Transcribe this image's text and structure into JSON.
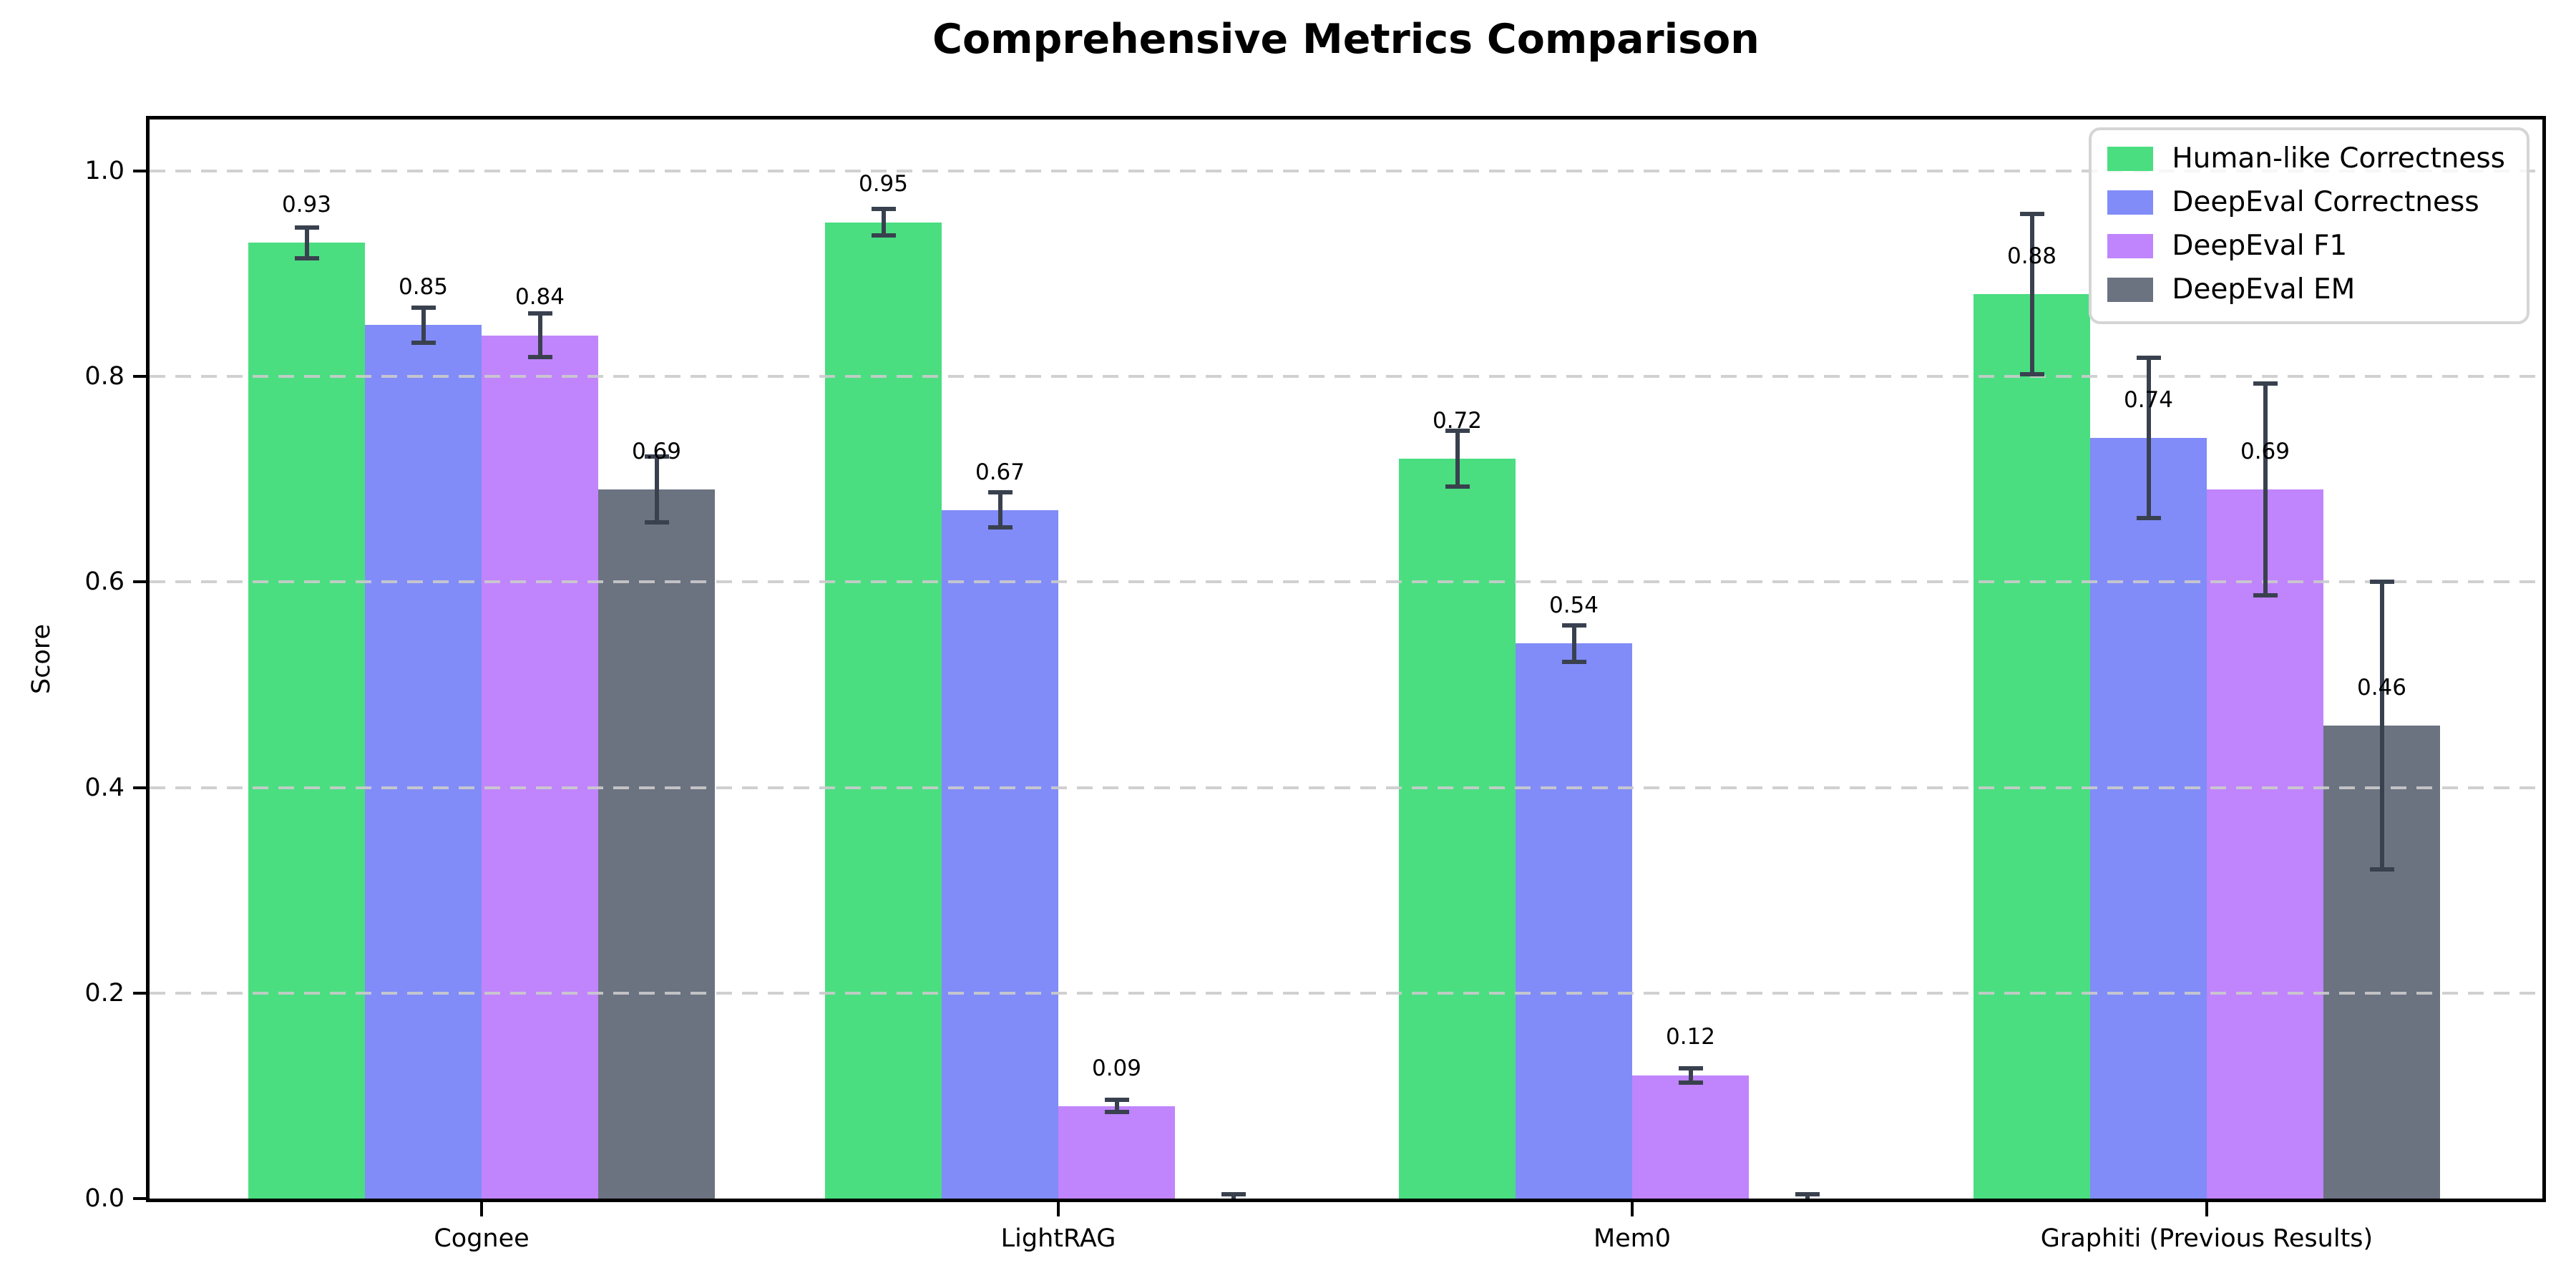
{
  "chart_data": {
    "type": "bar",
    "title": "Comprehensive Metrics Comparison",
    "xlabel": "",
    "ylabel": "Score",
    "ylim": [
      0,
      1.05
    ],
    "grid": "horizontal dashed",
    "legend_position": "upper right",
    "background": "#ffffff",
    "error_bar_color": "#39414f",
    "gridline_color": "#cbcbcb",
    "spine_color": "#000000",
    "categories": [
      "Cognee",
      "LightRAG",
      "Mem0",
      "Graphiti (Previous Results)"
    ],
    "yticks": {
      "values": [
        0.0,
        0.2,
        0.4,
        0.6,
        0.8,
        1.0
      ],
      "labels": [
        "0.0",
        "0.2",
        "0.4",
        "0.6",
        "0.8",
        "1.0"
      ]
    },
    "series": [
      {
        "name": "Human-like Correctness",
        "color": "#4ade80",
        "values": [
          0.93,
          0.95,
          0.72,
          0.88
        ],
        "errors": [
          0.015,
          0.013,
          0.027,
          0.078
        ],
        "labels": [
          "0.93",
          "0.95",
          "0.72",
          "0.88"
        ]
      },
      {
        "name": "DeepEval Correctness",
        "color": "#818cf8",
        "values": [
          0.85,
          0.67,
          0.54,
          0.74
        ],
        "errors": [
          0.017,
          0.017,
          0.018,
          0.078
        ],
        "labels": [
          "0.85",
          "0.67",
          "0.54",
          "0.74"
        ]
      },
      {
        "name": "DeepEval F1",
        "color": "#c084fc",
        "values": [
          0.84,
          0.09,
          0.12,
          0.69
        ],
        "errors": [
          0.021,
          0.006,
          0.007,
          0.103
        ],
        "labels": [
          "0.84",
          "0.09",
          "0.12",
          "0.69"
        ]
      },
      {
        "name": "DeepEval EM",
        "color": "#6b7280",
        "values": [
          0.69,
          0.0,
          0.0,
          0.46
        ],
        "errors": [
          0.032,
          0.004,
          0.004,
          0.14
        ],
        "labels": [
          "0.69",
          "",
          "",
          "0.46"
        ]
      }
    ]
  }
}
